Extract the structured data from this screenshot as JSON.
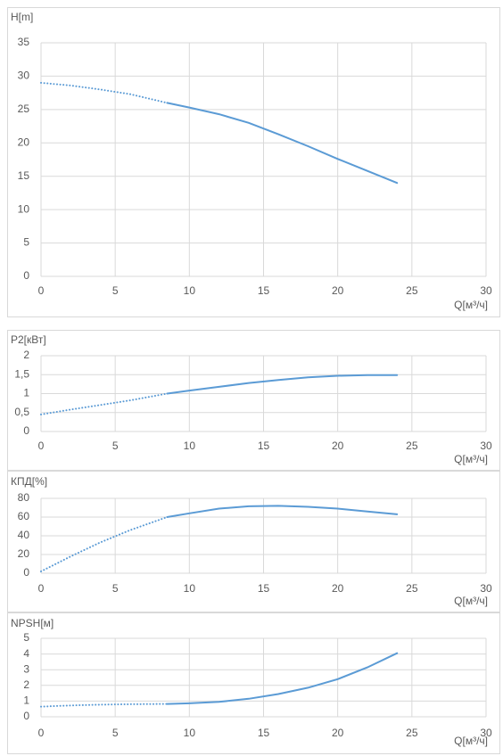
{
  "chart_data": [
    {
      "type": "line",
      "ylabel": "H[m]",
      "xlabel": "Q[м³/ч]",
      "xlim": [
        0,
        30
      ],
      "xticks": [
        0,
        5,
        10,
        15,
        20,
        25,
        30
      ],
      "ylim": [
        0,
        35
      ],
      "yticks": [
        0,
        5,
        10,
        15,
        20,
        25,
        30,
        35
      ],
      "grid": true,
      "series": [
        {
          "color": "#5b9bd5",
          "style": "dotted",
          "x": [
            0,
            2,
            4,
            6,
            8.5
          ],
          "values": [
            29,
            28.6,
            28,
            27.3,
            26
          ]
        },
        {
          "color": "#5b9bd5",
          "style": "solid",
          "x": [
            8.5,
            10,
            12,
            14,
            16,
            18,
            20,
            22,
            24
          ],
          "values": [
            26,
            25.3,
            24.3,
            23,
            21.3,
            19.5,
            17.6,
            15.8,
            14
          ]
        }
      ]
    },
    {
      "type": "line",
      "ylabel": "P2[кВт]",
      "xlabel": "Q[м³/ч]",
      "xlim": [
        0,
        30
      ],
      "xticks": [
        0,
        5,
        10,
        15,
        20,
        25,
        30
      ],
      "ylim": [
        0,
        2
      ],
      "yticks": [
        0,
        {
          "value": 0.5,
          "label": "0,5"
        },
        1,
        {
          "value": 1.5,
          "label": "1,5"
        },
        2
      ],
      "grid": true,
      "series": [
        {
          "color": "#5b9bd5",
          "style": "dotted",
          "x": [
            0,
            2,
            4,
            6,
            8.5
          ],
          "values": [
            0.45,
            0.58,
            0.7,
            0.82,
            1.0
          ]
        },
        {
          "color": "#5b9bd5",
          "style": "solid",
          "x": [
            8.5,
            10,
            12,
            14,
            16,
            18,
            20,
            22,
            24
          ],
          "values": [
            1.0,
            1.08,
            1.18,
            1.28,
            1.36,
            1.43,
            1.47,
            1.49,
            1.49
          ]
        }
      ]
    },
    {
      "type": "line",
      "ylabel": "КПД[%]",
      "xlabel": "Q[м³/ч]",
      "xlim": [
        0,
        30
      ],
      "xticks": [
        0,
        5,
        10,
        15,
        20,
        25,
        30
      ],
      "ylim": [
        0,
        80
      ],
      "yticks": [
        0,
        20,
        40,
        60,
        80
      ],
      "grid": true,
      "series": [
        {
          "color": "#5b9bd5",
          "style": "dotted",
          "x": [
            0,
            2,
            4,
            6,
            8.5
          ],
          "values": [
            2,
            18,
            33,
            46,
            60
          ]
        },
        {
          "color": "#5b9bd5",
          "style": "solid",
          "x": [
            8.5,
            10,
            12,
            14,
            16,
            18,
            20,
            22,
            24
          ],
          "values": [
            60,
            64,
            69,
            71.5,
            72,
            71,
            69,
            66,
            63
          ]
        }
      ]
    },
    {
      "type": "line",
      "ylabel": "NPSH[м]",
      "xlabel": "Q[м³/ч]",
      "xlim": [
        0,
        30
      ],
      "xticks": [
        0,
        5,
        10,
        15,
        20,
        25,
        30
      ],
      "ylim": [
        0,
        5
      ],
      "yticks": [
        0,
        1,
        2,
        3,
        4,
        5
      ],
      "grid": true,
      "series": [
        {
          "color": "#5b9bd5",
          "style": "dotted",
          "x": [
            0,
            2,
            4,
            6,
            8.5
          ],
          "values": [
            0.65,
            0.72,
            0.77,
            0.8,
            0.82
          ]
        },
        {
          "color": "#5b9bd5",
          "style": "solid",
          "x": [
            8.5,
            10,
            12,
            14,
            16,
            18,
            20,
            22,
            24
          ],
          "values": [
            0.82,
            0.86,
            0.95,
            1.15,
            1.45,
            1.85,
            2.4,
            3.15,
            4.05
          ]
        }
      ]
    }
  ]
}
